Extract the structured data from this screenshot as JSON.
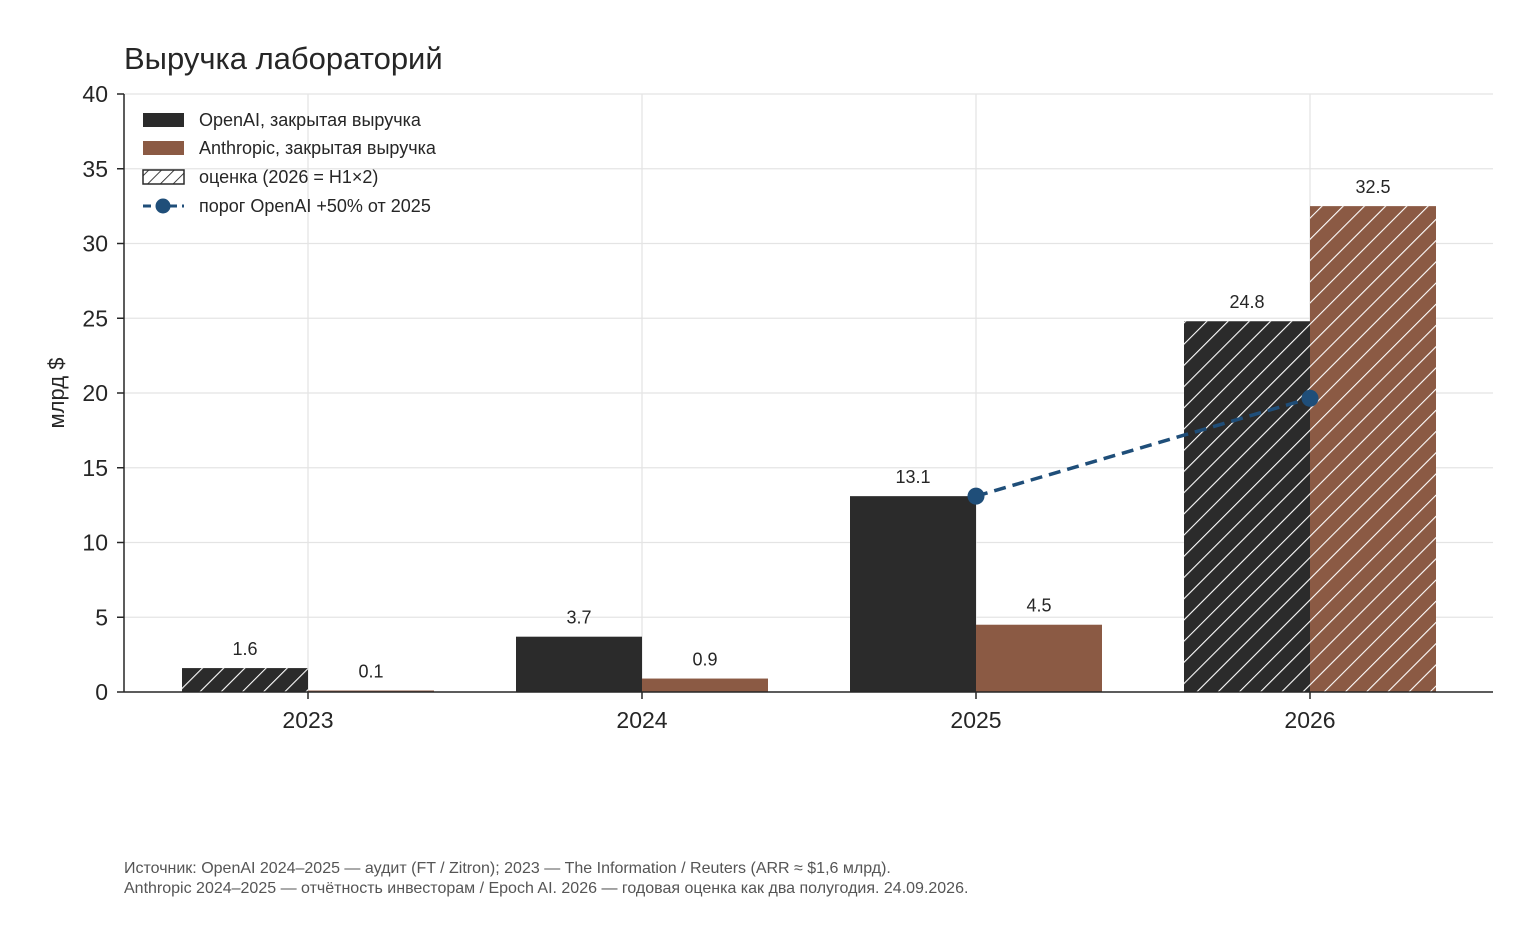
{
  "chart_data": {
    "type": "bar",
    "title": "Выручка лабораторий",
    "xlabel": "",
    "ylabel": "млрд $",
    "ylim": [
      0,
      40
    ],
    "yticks": [
      0,
      5,
      10,
      15,
      20,
      25,
      30,
      35,
      40
    ],
    "grid": true,
    "legend_position": "top-left",
    "categories": [
      "2023",
      "2024",
      "2025",
      "2026"
    ],
    "series": [
      {
        "name": "OpenAI, закрытая выручка",
        "color": "#2b2b2b",
        "values": [
          1.6,
          3.7,
          13.1,
          24.8
        ],
        "labels": [
          "1.6",
          "3.7",
          "13.1",
          "24.8"
        ],
        "estimate": [
          true,
          false,
          false,
          true
        ]
      },
      {
        "name": "Anthropic, закрытая выручка",
        "color": "#8b5a44",
        "values": [
          0.1,
          0.9,
          4.5,
          32.5
        ],
        "labels": [
          "0.1",
          "0.9",
          "4.5",
          "32.5"
        ],
        "estimate": [
          false,
          false,
          false,
          true
        ]
      }
    ],
    "estimate_legend": "оценка (2026 = H1×2)",
    "threshold": {
      "name": "порог OpenAI +50% от 2025",
      "color": "#1f4e79",
      "points": [
        {
          "x": "2025",
          "y": 13.1
        },
        {
          "x": "2026",
          "y": 19.65
        }
      ]
    },
    "source_lines": [
      "Источник: OpenAI 2024–2025 — аудит (FT / Zitron); 2023 — The Information / Reuters (ARR ≈ $1,6 млрд).",
      "Anthropic 2024–2025 — отчётность инвесторам / Epoch AI. 2026 — годовая оценка как два полугодия. 24.09.2026."
    ]
  }
}
